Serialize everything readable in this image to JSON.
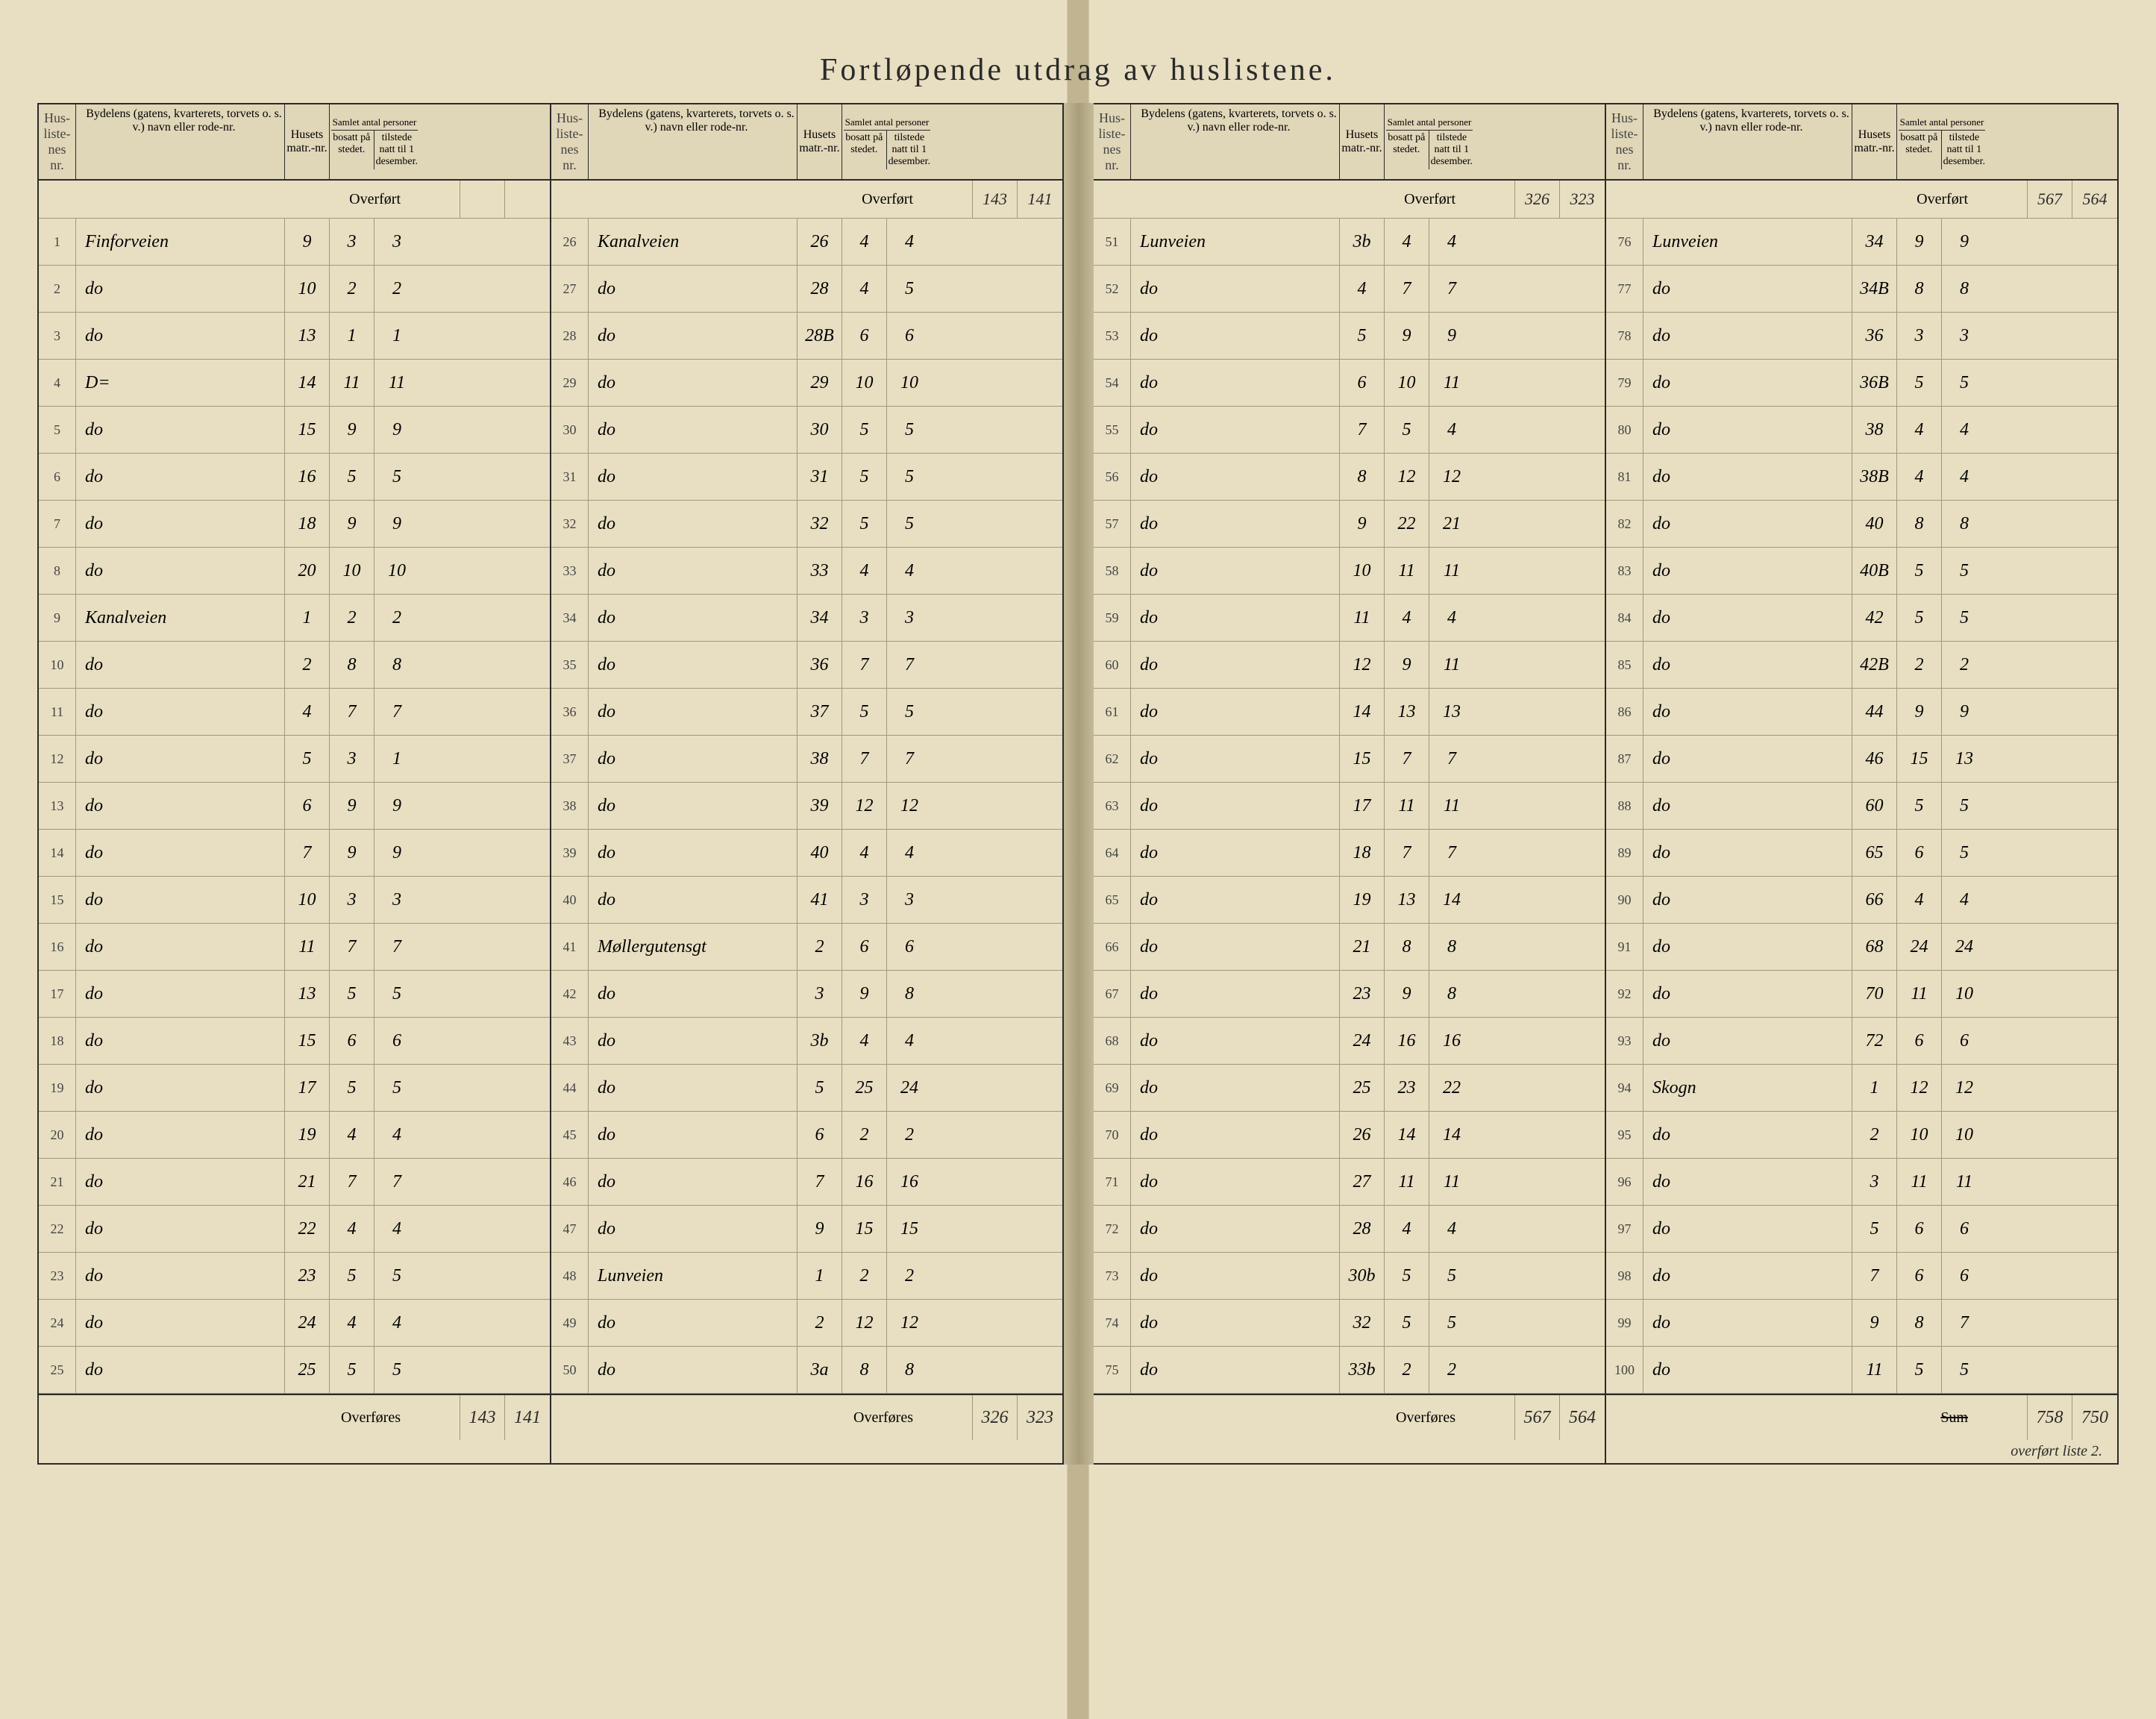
{
  "title": "Fortløpende utdrag    av huslistene.",
  "headers": {
    "liste": "Hus-liste-nes nr.",
    "bydel": "Bydelens (gatens, kvarterets, torvets o. s. v.) navn eller rode-nr.",
    "matr": "Husets matr.-nr.",
    "samlet": "Samlet antal personer",
    "bosatt": "bosatt på stedet.",
    "tilstede": "tilstede natt til 1 desember."
  },
  "overfort_label": "Overført",
  "overfores_label": "Overføres",
  "sum_label": "Sum",
  "columns": [
    {
      "overfort": {
        "bosatt": "",
        "tilstede": ""
      },
      "rows": [
        {
          "nr": "1",
          "bydel": "Finforveien",
          "matr": "9",
          "bosatt": "3",
          "tilstede": "3"
        },
        {
          "nr": "2",
          "bydel": "do",
          "matr": "10",
          "bosatt": "2",
          "tilstede": "2"
        },
        {
          "nr": "3",
          "bydel": "do",
          "matr": "13",
          "bosatt": "1",
          "tilstede": "1"
        },
        {
          "nr": "4",
          "bydel": "D=",
          "matr": "14",
          "bosatt": "11",
          "tilstede": "11"
        },
        {
          "nr": "5",
          "bydel": "do",
          "matr": "15",
          "bosatt": "9",
          "tilstede": "9"
        },
        {
          "nr": "6",
          "bydel": "do",
          "matr": "16",
          "bosatt": "5",
          "tilstede": "5"
        },
        {
          "nr": "7",
          "bydel": "do",
          "matr": "18",
          "bosatt": "9",
          "tilstede": "9"
        },
        {
          "nr": "8",
          "bydel": "do",
          "matr": "20",
          "bosatt": "10",
          "tilstede": "10"
        },
        {
          "nr": "9",
          "bydel": "Kanalveien",
          "matr": "1",
          "bosatt": "2",
          "tilstede": "2"
        },
        {
          "nr": "10",
          "bydel": "do",
          "matr": "2",
          "bosatt": "8",
          "tilstede": "8"
        },
        {
          "nr": "11",
          "bydel": "do",
          "matr": "4",
          "bosatt": "7",
          "tilstede": "7"
        },
        {
          "nr": "12",
          "bydel": "do",
          "matr": "5",
          "bosatt": "3",
          "tilstede": "1"
        },
        {
          "nr": "13",
          "bydel": "do",
          "matr": "6",
          "bosatt": "9",
          "tilstede": "9"
        },
        {
          "nr": "14",
          "bydel": "do",
          "matr": "7",
          "bosatt": "9",
          "tilstede": "9"
        },
        {
          "nr": "15",
          "bydel": "do",
          "matr": "10",
          "bosatt": "3",
          "tilstede": "3"
        },
        {
          "nr": "16",
          "bydel": "do",
          "matr": "11",
          "bosatt": "7",
          "tilstede": "7"
        },
        {
          "nr": "17",
          "bydel": "do",
          "matr": "13",
          "bosatt": "5",
          "tilstede": "5"
        },
        {
          "nr": "18",
          "bydel": "do",
          "matr": "15",
          "bosatt": "6",
          "tilstede": "6"
        },
        {
          "nr": "19",
          "bydel": "do",
          "matr": "17",
          "bosatt": "5",
          "tilstede": "5"
        },
        {
          "nr": "20",
          "bydel": "do",
          "matr": "19",
          "bosatt": "4",
          "tilstede": "4"
        },
        {
          "nr": "21",
          "bydel": "do",
          "matr": "21",
          "bosatt": "7",
          "tilstede": "7"
        },
        {
          "nr": "22",
          "bydel": "do",
          "matr": "22",
          "bosatt": "4",
          "tilstede": "4"
        },
        {
          "nr": "23",
          "bydel": "do",
          "matr": "23",
          "bosatt": "5",
          "tilstede": "5"
        },
        {
          "nr": "24",
          "bydel": "do",
          "matr": "24",
          "bosatt": "4",
          "tilstede": "4"
        },
        {
          "nr": "25",
          "bydel": "do",
          "matr": "25",
          "bosatt": "5",
          "tilstede": "5"
        }
      ],
      "overfores": {
        "bosatt": "143",
        "tilstede": "141"
      }
    },
    {
      "overfort": {
        "bosatt": "143",
        "tilstede": "141"
      },
      "rows": [
        {
          "nr": "26",
          "bydel": "Kanalveien",
          "matr": "26",
          "bosatt": "4",
          "tilstede": "4"
        },
        {
          "nr": "27",
          "bydel": "do",
          "matr": "28",
          "bosatt": "4",
          "tilstede": "5"
        },
        {
          "nr": "28",
          "bydel": "do",
          "matr": "28B",
          "bosatt": "6",
          "tilstede": "6"
        },
        {
          "nr": "29",
          "bydel": "do",
          "matr": "29",
          "bosatt": "10",
          "tilstede": "10"
        },
        {
          "nr": "30",
          "bydel": "do",
          "matr": "30",
          "bosatt": "5",
          "tilstede": "5"
        },
        {
          "nr": "31",
          "bydel": "do",
          "matr": "31",
          "bosatt": "5",
          "tilstede": "5"
        },
        {
          "nr": "32",
          "bydel": "do",
          "matr": "32",
          "bosatt": "5",
          "tilstede": "5"
        },
        {
          "nr": "33",
          "bydel": "do",
          "matr": "33",
          "bosatt": "4",
          "tilstede": "4"
        },
        {
          "nr": "34",
          "bydel": "do",
          "matr": "34",
          "bosatt": "3",
          "tilstede": "3"
        },
        {
          "nr": "35",
          "bydel": "do",
          "matr": "36",
          "bosatt": "7",
          "tilstede": "7"
        },
        {
          "nr": "36",
          "bydel": "do",
          "matr": "37",
          "bosatt": "5",
          "tilstede": "5"
        },
        {
          "nr": "37",
          "bydel": "do",
          "matr": "38",
          "bosatt": "7",
          "tilstede": "7"
        },
        {
          "nr": "38",
          "bydel": "do",
          "matr": "39",
          "bosatt": "12",
          "tilstede": "12"
        },
        {
          "nr": "39",
          "bydel": "do",
          "matr": "40",
          "bosatt": "4",
          "tilstede": "4"
        },
        {
          "nr": "40",
          "bydel": "do",
          "matr": "41",
          "bosatt": "3",
          "tilstede": "3"
        },
        {
          "nr": "41",
          "bydel": "Møllergutensgt",
          "matr": "2",
          "bosatt": "6",
          "tilstede": "6"
        },
        {
          "nr": "42",
          "bydel": "do",
          "matr": "3",
          "bosatt": "9",
          "tilstede": "8"
        },
        {
          "nr": "43",
          "bydel": "do",
          "matr": "3b",
          "bosatt": "4",
          "tilstede": "4"
        },
        {
          "nr": "44",
          "bydel": "do",
          "matr": "5",
          "bosatt": "25",
          "tilstede": "24"
        },
        {
          "nr": "45",
          "bydel": "do",
          "matr": "6",
          "bosatt": "2",
          "tilstede": "2"
        },
        {
          "nr": "46",
          "bydel": "do",
          "matr": "7",
          "bosatt": "16",
          "tilstede": "16"
        },
        {
          "nr": "47",
          "bydel": "do",
          "matr": "9",
          "bosatt": "15",
          "tilstede": "15"
        },
        {
          "nr": "48",
          "bydel": "Lunveien",
          "matr": "1",
          "bosatt": "2",
          "tilstede": "2"
        },
        {
          "nr": "49",
          "bydel": "do",
          "matr": "2",
          "bosatt": "12",
          "tilstede": "12"
        },
        {
          "nr": "50",
          "bydel": "do",
          "matr": "3a",
          "bosatt": "8",
          "tilstede": "8"
        }
      ],
      "overfores": {
        "bosatt": "326",
        "tilstede": "323"
      }
    },
    {
      "overfort": {
        "bosatt": "326",
        "tilstede": "323"
      },
      "rows": [
        {
          "nr": "51",
          "bydel": "Lunveien",
          "matr": "3b",
          "bosatt": "4",
          "tilstede": "4"
        },
        {
          "nr": "52",
          "bydel": "do",
          "matr": "4",
          "bosatt": "7",
          "tilstede": "7"
        },
        {
          "nr": "53",
          "bydel": "do",
          "matr": "5",
          "bosatt": "9",
          "tilstede": "9"
        },
        {
          "nr": "54",
          "bydel": "do",
          "matr": "6",
          "bosatt": "10",
          "tilstede": "11"
        },
        {
          "nr": "55",
          "bydel": "do",
          "matr": "7",
          "bosatt": "5",
          "tilstede": "4"
        },
        {
          "nr": "56",
          "bydel": "do",
          "matr": "8",
          "bosatt": "12",
          "tilstede": "12"
        },
        {
          "nr": "57",
          "bydel": "do",
          "matr": "9",
          "bosatt": "22",
          "tilstede": "21"
        },
        {
          "nr": "58",
          "bydel": "do",
          "matr": "10",
          "bosatt": "11",
          "tilstede": "11"
        },
        {
          "nr": "59",
          "bydel": "do",
          "matr": "11",
          "bosatt": "4",
          "tilstede": "4"
        },
        {
          "nr": "60",
          "bydel": "do",
          "matr": "12",
          "bosatt": "9",
          "tilstede": "11"
        },
        {
          "nr": "61",
          "bydel": "do",
          "matr": "14",
          "bosatt": "13",
          "tilstede": "13"
        },
        {
          "nr": "62",
          "bydel": "do",
          "matr": "15",
          "bosatt": "7",
          "tilstede": "7"
        },
        {
          "nr": "63",
          "bydel": "do",
          "matr": "17",
          "bosatt": "11",
          "tilstede": "11"
        },
        {
          "nr": "64",
          "bydel": "do",
          "matr": "18",
          "bosatt": "7",
          "tilstede": "7"
        },
        {
          "nr": "65",
          "bydel": "do",
          "matr": "19",
          "bosatt": "13",
          "tilstede": "14"
        },
        {
          "nr": "66",
          "bydel": "do",
          "matr": "21",
          "bosatt": "8",
          "tilstede": "8"
        },
        {
          "nr": "67",
          "bydel": "do",
          "matr": "23",
          "bosatt": "9",
          "tilstede": "8"
        },
        {
          "nr": "68",
          "bydel": "do",
          "matr": "24",
          "bosatt": "16",
          "tilstede": "16"
        },
        {
          "nr": "69",
          "bydel": "do",
          "matr": "25",
          "bosatt": "23",
          "tilstede": "22"
        },
        {
          "nr": "70",
          "bydel": "do",
          "matr": "26",
          "bosatt": "14",
          "tilstede": "14"
        },
        {
          "nr": "71",
          "bydel": "do",
          "matr": "27",
          "bosatt": "11",
          "tilstede": "11"
        },
        {
          "nr": "72",
          "bydel": "do",
          "matr": "28",
          "bosatt": "4",
          "tilstede": "4"
        },
        {
          "nr": "73",
          "bydel": "do",
          "matr": "30b",
          "bosatt": "5",
          "tilstede": "5"
        },
        {
          "nr": "74",
          "bydel": "do",
          "matr": "32",
          "bosatt": "5",
          "tilstede": "5"
        },
        {
          "nr": "75",
          "bydel": "do",
          "matr": "33b",
          "bosatt": "2",
          "tilstede": "2"
        }
      ],
      "overfores": {
        "bosatt": "567",
        "tilstede": "564"
      }
    },
    {
      "overfort": {
        "bosatt": "567",
        "tilstede": "564"
      },
      "rows": [
        {
          "nr": "76",
          "bydel": "Lunveien",
          "matr": "34",
          "bosatt": "9",
          "tilstede": "9"
        },
        {
          "nr": "77",
          "bydel": "do",
          "matr": "34B",
          "bosatt": "8",
          "tilstede": "8"
        },
        {
          "nr": "78",
          "bydel": "do",
          "matr": "36",
          "bosatt": "3",
          "tilstede": "3"
        },
        {
          "nr": "79",
          "bydel": "do",
          "matr": "36B",
          "bosatt": "5",
          "tilstede": "5"
        },
        {
          "nr": "80",
          "bydel": "do",
          "matr": "38",
          "bosatt": "4",
          "tilstede": "4"
        },
        {
          "nr": "81",
          "bydel": "do",
          "matr": "38B",
          "bosatt": "4",
          "tilstede": "4"
        },
        {
          "nr": "82",
          "bydel": "do",
          "matr": "40",
          "bosatt": "8",
          "tilstede": "8"
        },
        {
          "nr": "83",
          "bydel": "do",
          "matr": "40B",
          "bosatt": "5",
          "tilstede": "5"
        },
        {
          "nr": "84",
          "bydel": "do",
          "matr": "42",
          "bosatt": "5",
          "tilstede": "5"
        },
        {
          "nr": "85",
          "bydel": "do",
          "matr": "42B",
          "bosatt": "2",
          "tilstede": "2"
        },
        {
          "nr": "86",
          "bydel": "do",
          "matr": "44",
          "bosatt": "9",
          "tilstede": "9"
        },
        {
          "nr": "87",
          "bydel": "do",
          "matr": "46",
          "bosatt": "15",
          "tilstede": "13"
        },
        {
          "nr": "88",
          "bydel": "do",
          "matr": "60",
          "bosatt": "5",
          "tilstede": "5"
        },
        {
          "nr": "89",
          "bydel": "do",
          "matr": "65",
          "bosatt": "6",
          "tilstede": "5"
        },
        {
          "nr": "90",
          "bydel": "do",
          "matr": "66",
          "bosatt": "4",
          "tilstede": "4"
        },
        {
          "nr": "91",
          "bydel": "do",
          "matr": "68",
          "bosatt": "24",
          "tilstede": "24"
        },
        {
          "nr": "92",
          "bydel": "do",
          "matr": "70",
          "bosatt": "11",
          "tilstede": "10"
        },
        {
          "nr": "93",
          "bydel": "do",
          "matr": "72",
          "bosatt": "6",
          "tilstede": "6"
        },
        {
          "nr": "94",
          "bydel": "Skogn",
          "matr": "1",
          "bosatt": "12",
          "tilstede": "12"
        },
        {
          "nr": "95",
          "bydel": "do",
          "matr": "2",
          "bosatt": "10",
          "tilstede": "10"
        },
        {
          "nr": "96",
          "bydel": "do",
          "matr": "3",
          "bosatt": "11",
          "tilstede": "11"
        },
        {
          "nr": "97",
          "bydel": "do",
          "matr": "5",
          "bosatt": "6",
          "tilstede": "6"
        },
        {
          "nr": "98",
          "bydel": "do",
          "matr": "7",
          "bosatt": "6",
          "tilstede": "6"
        },
        {
          "nr": "99",
          "bydel": "do",
          "matr": "9",
          "bosatt": "8",
          "tilstede": "7"
        },
        {
          "nr": "100",
          "bydel": "do",
          "matr": "11",
          "bosatt": "5",
          "tilstede": "5"
        }
      ],
      "overfores": {
        "bosatt": "758",
        "tilstede": "750"
      },
      "footer_note": "overført liste 2."
    }
  ]
}
